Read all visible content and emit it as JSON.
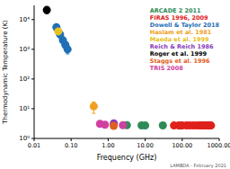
{
  "chart_data": {
    "type": "scatter",
    "x_label": "Frequency (GHz)",
    "y_label": "Thermodynamic Temperature (K)",
    "annotation": "LAMBDA - February 2021",
    "log": true,
    "grid": false,
    "legend": "top-right",
    "marker": "circle",
    "xlim": [
      0.01,
      1000
    ],
    "xticks": [
      {
        "value": 0.01,
        "label": "0.01"
      },
      {
        "value": 0.1,
        "label": "0.10"
      },
      {
        "value": 1,
        "label": "1.00"
      },
      {
        "value": 10,
        "label": "10.00"
      },
      {
        "value": 100,
        "label": "100.00"
      },
      {
        "value": 1000,
        "label": "1000.00"
      }
    ],
    "ylim": [
      1,
      30000
    ],
    "yticks": [
      {
        "value": 1,
        "label": "10⁰"
      },
      {
        "value": 10,
        "label": "10¹"
      },
      {
        "value": 100,
        "label": "10²"
      },
      {
        "value": 1000,
        "label": "10³"
      },
      {
        "value": 10000,
        "label": "10⁴"
      }
    ],
    "series": [
      {
        "name": "ARCADE 2 2011",
        "color": "#2e8b57",
        "x": [
          3.2,
          8,
          10,
          30,
          90
        ],
        "values": [
          2.8,
          2.74,
          2.73,
          2.75,
          2.7
        ],
        "errors": [
          0.2,
          0.02,
          0.02,
          0.05,
          0.03
        ]
      },
      {
        "name": "FIRAS 1996, 2009",
        "color": "#e0201b",
        "x": [
          60,
          80,
          100,
          130,
          160,
          200,
          250,
          300,
          350,
          400,
          450,
          500,
          550,
          600
        ],
        "values": [
          2.725,
          2.725,
          2.725,
          2.725,
          2.725,
          2.725,
          2.725,
          2.725,
          2.725,
          2.725,
          2.725,
          2.725,
          2.725,
          2.725
        ],
        "errors": [
          0.05,
          0.05,
          0.05,
          0.05,
          0.05,
          0.05,
          0.05,
          0.05,
          0.05,
          0.05,
          0.05,
          0.05,
          0.05,
          0.05
        ]
      },
      {
        "name": "Dowell & Taylor 2018",
        "color": "#1f6fb5",
        "x": [
          0.04,
          0.05,
          0.06,
          0.07,
          0.08
        ],
        "values": [
          5500,
          3200,
          2000,
          1400,
          1000
        ],
        "errors": [
          1500,
          900,
          600,
          400,
          300
        ]
      },
      {
        "name": "Haslam et al. 1981",
        "color": "#f0a020",
        "x": [
          0.408
        ],
        "values": [
          12
        ],
        "errors": [
          5
        ]
      },
      {
        "name": "Maeda et al. 1999",
        "color": "#e8c020",
        "x": [
          0.045
        ],
        "values": [
          4000
        ],
        "errors": [
          1000
        ]
      },
      {
        "name": "Reich & Reich 1986",
        "color": "#8a3ab9",
        "x": [
          1.42
        ],
        "values": [
          3.2
        ],
        "errors": [
          0.5
        ]
      },
      {
        "name": "Roger et al. 1999",
        "color": "#000000",
        "x": [
          0.022
        ],
        "values": [
          21000
        ],
        "errors": [
          5000
        ]
      },
      {
        "name": "Staggs et al. 1996",
        "color": "#e06020",
        "x": [
          1.41
        ],
        "values": [
          2.65
        ],
        "errors": [
          0.3
        ]
      },
      {
        "name": "TRIS 2008",
        "color": "#d040a0",
        "x": [
          0.6,
          0.82,
          2.5
        ],
        "values": [
          3.1,
          2.9,
          2.8
        ],
        "errors": [
          0.5,
          0.4,
          0.2
        ]
      }
    ]
  }
}
